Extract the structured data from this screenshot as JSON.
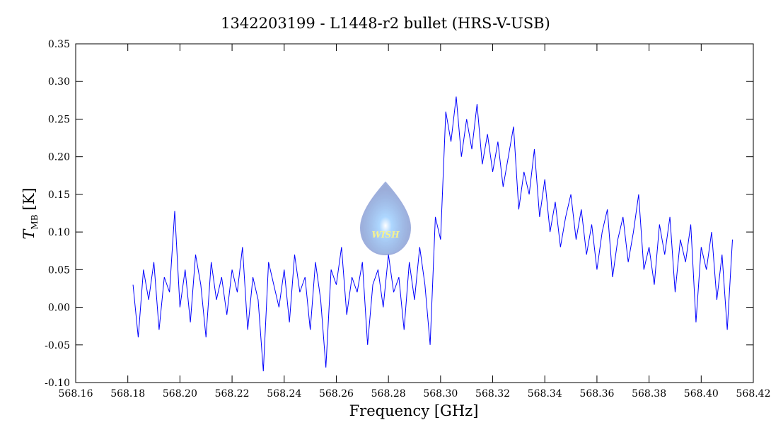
{
  "chart_data": {
    "type": "line",
    "title": "1342203199 - L1448-r2 bullet (HRS-V-USB)",
    "x_label": "Frequency [GHz]",
    "y_label": "T",
    "y_label_sub": "MB",
    "y_label_unit": "[K]",
    "annotation": "WISH",
    "xlim": [
      568.16,
      568.42
    ],
    "xticks": [
      568.16,
      568.18,
      {
        "value": 568.2,
        "label": "568.20"
      },
      568.22,
      568.24,
      568.26,
      568.28,
      {
        "value": 568.3,
        "label": "568.30"
      },
      568.32,
      568.34,
      568.36,
      568.38,
      {
        "value": 568.4,
        "label": "568.40"
      },
      568.42
    ],
    "ylim": [
      -0.1,
      0.35
    ],
    "yticks": [
      {
        "value": -0.1,
        "label": "-0.10"
      },
      -0.05,
      {
        "value": 0,
        "label": "0.00"
      },
      0.05,
      {
        "value": 0.1,
        "label": "0.10"
      },
      0.15,
      {
        "value": 0.2,
        "label": "0.20"
      },
      0.25,
      {
        "value": 0.3,
        "label": "0.30"
      },
      0.35
    ],
    "series": [
      {
        "color": "#0000ff",
        "x": [
          568.182,
          568.184,
          568.186,
          568.188,
          568.19,
          568.192,
          568.194,
          568.196,
          568.198,
          568.2,
          568.202,
          568.204,
          568.206,
          568.208,
          568.21,
          568.212,
          568.214,
          568.216,
          568.218,
          568.22,
          568.222,
          568.224,
          568.226,
          568.228,
          568.23,
          568.232,
          568.234,
          568.236,
          568.238,
          568.24,
          568.242,
          568.244,
          568.246,
          568.248,
          568.25,
          568.252,
          568.254,
          568.256,
          568.258,
          568.26,
          568.262,
          568.264,
          568.266,
          568.268,
          568.27,
          568.272,
          568.274,
          568.276,
          568.278,
          568.28,
          568.282,
          568.284,
          568.286,
          568.288,
          568.29,
          568.292,
          568.294,
          568.296,
          568.298,
          568.3,
          568.302,
          568.304,
          568.306,
          568.308,
          568.31,
          568.312,
          568.314,
          568.316,
          568.318,
          568.32,
          568.322,
          568.324,
          568.326,
          568.328,
          568.33,
          568.332,
          568.334,
          568.336,
          568.338,
          568.34,
          568.342,
          568.344,
          568.346,
          568.348,
          568.35,
          568.352,
          568.354,
          568.356,
          568.358,
          568.36,
          568.362,
          568.364,
          568.366,
          568.368,
          568.37,
          568.372,
          568.374,
          568.376,
          568.378,
          568.38,
          568.382,
          568.384,
          568.386,
          568.388,
          568.39,
          568.392,
          568.394,
          568.396,
          568.398,
          568.4,
          568.402,
          568.404,
          568.406,
          568.408,
          568.41,
          568.412
        ],
        "values": [
          0.03,
          -0.04,
          0.05,
          0.01,
          0.06,
          -0.03,
          0.04,
          0.02,
          0.128,
          0.0,
          0.05,
          -0.02,
          0.07,
          0.03,
          -0.04,
          0.06,
          0.01,
          0.04,
          -0.01,
          0.05,
          0.02,
          0.08,
          -0.03,
          0.04,
          0.01,
          -0.085,
          0.06,
          0.03,
          0.0,
          0.05,
          -0.02,
          0.07,
          0.02,
          0.04,
          -0.03,
          0.06,
          0.01,
          -0.08,
          0.05,
          0.03,
          0.08,
          -0.01,
          0.04,
          0.02,
          0.06,
          -0.05,
          0.03,
          0.05,
          0.0,
          0.07,
          0.02,
          0.04,
          -0.03,
          0.06,
          0.01,
          0.08,
          0.03,
          -0.05,
          0.12,
          0.09,
          0.26,
          0.22,
          0.28,
          0.2,
          0.25,
          0.21,
          0.27,
          0.19,
          0.23,
          0.18,
          0.22,
          0.16,
          0.2,
          0.24,
          0.13,
          0.18,
          0.15,
          0.21,
          0.12,
          0.17,
          0.1,
          0.14,
          0.08,
          0.12,
          0.15,
          0.09,
          0.13,
          0.07,
          0.11,
          0.05,
          0.1,
          0.13,
          0.04,
          0.09,
          0.12,
          0.06,
          0.1,
          0.15,
          0.05,
          0.08,
          0.03,
          0.11,
          0.07,
          0.12,
          0.02,
          0.09,
          0.06,
          0.11,
          -0.02,
          0.08,
          0.05,
          0.1,
          0.01,
          0.07,
          -0.03,
          0.09
        ]
      }
    ]
  }
}
